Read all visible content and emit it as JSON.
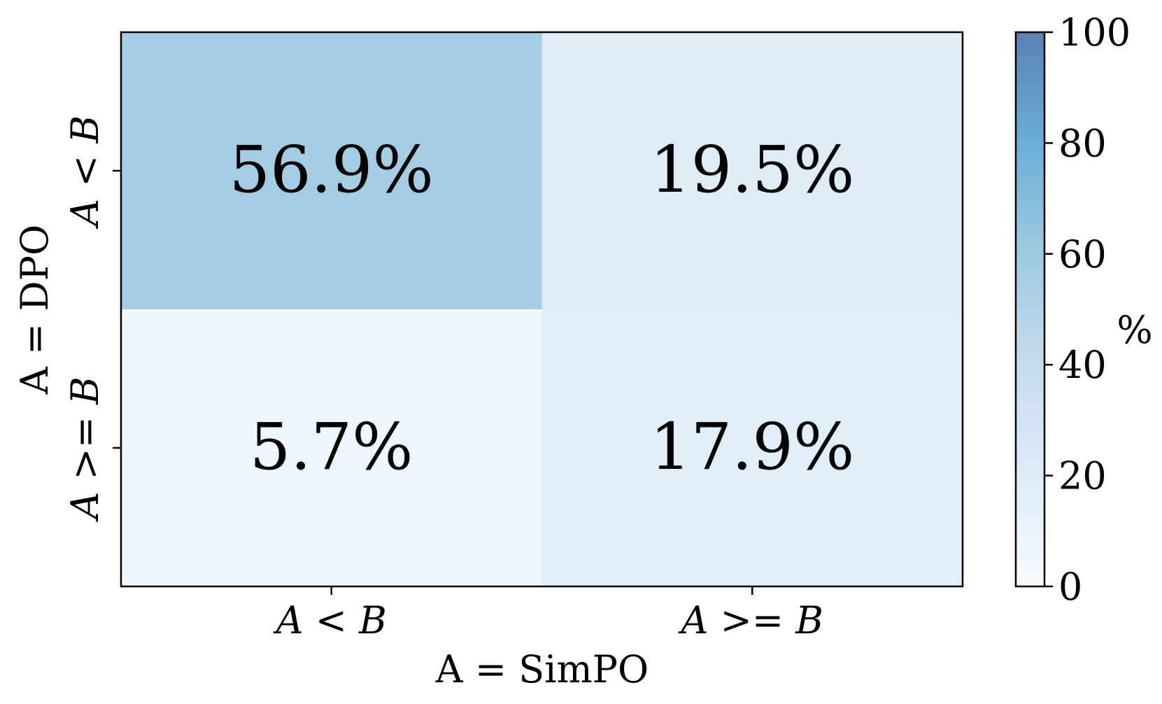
{
  "chart_data": {
    "type": "heatmap",
    "xlabel": "A = SimPO",
    "ylabel": "A = DPO",
    "x_categories": [
      "A < B",
      "A >= B"
    ],
    "y_categories": [
      "A < B",
      "A >= B"
    ],
    "values": [
      [
        56.9,
        19.5
      ],
      [
        5.7,
        17.9
      ]
    ],
    "cell_labels": [
      [
        "56.9%",
        "19.5%"
      ],
      [
        "5.7%",
        "17.9%"
      ]
    ],
    "colorbar": {
      "label": "%",
      "range": [
        0,
        100
      ],
      "ticks": [
        "0",
        "20",
        "40",
        "60",
        "80",
        "100"
      ]
    },
    "colormap": [
      "#f7fbff",
      "#deebf7",
      "#c6dbef",
      "#9ecae1",
      "#6baed6",
      "#4a78a8"
    ]
  }
}
